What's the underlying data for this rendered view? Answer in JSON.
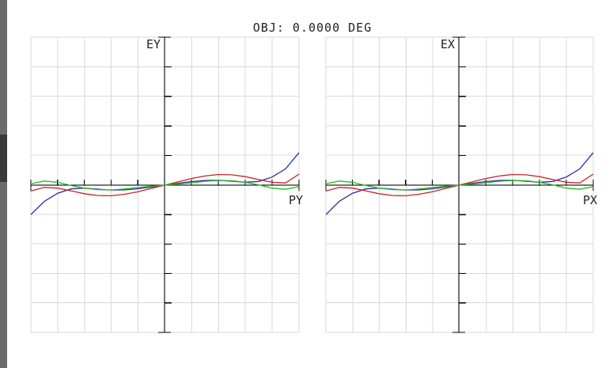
{
  "title": "OBJ: 0.0000 DEG",
  "colors": {
    "blue": "#2a2aa8",
    "red": "#cc2222",
    "green": "#22bb22"
  },
  "chart_data": [
    {
      "type": "line",
      "ylabel": "EY",
      "xlabel": "PY",
      "xlim": [
        -1,
        1
      ],
      "ylim": [
        -1,
        1
      ],
      "grid": true,
      "series": [
        {
          "color": "blue",
          "x": [
            -1,
            -0.9,
            -0.8,
            -0.7,
            -0.6,
            -0.5,
            -0.4,
            -0.3,
            -0.2,
            -0.1,
            0,
            0.1,
            0.2,
            0.3,
            0.4,
            0.5,
            0.6,
            0.7,
            0.8,
            0.9,
            1
          ],
          "y": [
            -0.2,
            -0.11,
            -0.055,
            -0.025,
            -0.02,
            -0.027,
            -0.033,
            -0.032,
            -0.024,
            -0.013,
            0,
            0.013,
            0.024,
            0.032,
            0.033,
            0.027,
            0.02,
            0.025,
            0.055,
            0.11,
            0.22
          ]
        },
        {
          "color": "red",
          "x": [
            -1,
            -0.9,
            -0.8,
            -0.7,
            -0.6,
            -0.5,
            -0.4,
            -0.3,
            -0.2,
            -0.1,
            0,
            0.1,
            0.2,
            0.3,
            0.4,
            0.5,
            0.6,
            0.7,
            0.8,
            0.9,
            1
          ],
          "y": [
            -0.04,
            -0.015,
            -0.02,
            -0.038,
            -0.058,
            -0.07,
            -0.072,
            -0.062,
            -0.045,
            -0.022,
            0,
            0.022,
            0.045,
            0.062,
            0.072,
            0.07,
            0.058,
            0.038,
            0.02,
            0.015,
            0.075
          ]
        },
        {
          "color": "green",
          "x": [
            -1,
            -0.9,
            -0.8,
            -0.7,
            -0.6,
            -0.5,
            -0.4,
            -0.3,
            -0.2,
            -0.1,
            0,
            0.1,
            0.2,
            0.3,
            0.4,
            0.5,
            0.6,
            0.7,
            0.8,
            0.9,
            1
          ],
          "y": [
            0.01,
            0.028,
            0.02,
            -0.002,
            -0.02,
            -0.03,
            -0.032,
            -0.026,
            -0.016,
            -0.007,
            0,
            0.007,
            0.016,
            0.026,
            0.032,
            0.03,
            0.02,
            0.002,
            -0.02,
            -0.028,
            -0.01
          ]
        }
      ]
    },
    {
      "type": "line",
      "ylabel": "EX",
      "xlabel": "PX",
      "xlim": [
        -1,
        1
      ],
      "ylim": [
        -1,
        1
      ],
      "grid": true,
      "series": [
        {
          "color": "blue",
          "x": [
            -1,
            -0.9,
            -0.8,
            -0.7,
            -0.6,
            -0.5,
            -0.4,
            -0.3,
            -0.2,
            -0.1,
            0,
            0.1,
            0.2,
            0.3,
            0.4,
            0.5,
            0.6,
            0.7,
            0.8,
            0.9,
            1
          ],
          "y": [
            -0.2,
            -0.11,
            -0.055,
            -0.025,
            -0.02,
            -0.027,
            -0.033,
            -0.032,
            -0.024,
            -0.013,
            0,
            0.013,
            0.024,
            0.032,
            0.033,
            0.027,
            0.02,
            0.025,
            0.055,
            0.11,
            0.22
          ]
        },
        {
          "color": "red",
          "x": [
            -1,
            -0.9,
            -0.8,
            -0.7,
            -0.6,
            -0.5,
            -0.4,
            -0.3,
            -0.2,
            -0.1,
            0,
            0.1,
            0.2,
            0.3,
            0.4,
            0.5,
            0.6,
            0.7,
            0.8,
            0.9,
            1
          ],
          "y": [
            -0.04,
            -0.015,
            -0.02,
            -0.038,
            -0.058,
            -0.07,
            -0.072,
            -0.062,
            -0.045,
            -0.022,
            0,
            0.022,
            0.045,
            0.062,
            0.072,
            0.07,
            0.058,
            0.038,
            0.02,
            0.015,
            0.075
          ]
        },
        {
          "color": "green",
          "x": [
            -1,
            -0.9,
            -0.8,
            -0.7,
            -0.6,
            -0.5,
            -0.4,
            -0.3,
            -0.2,
            -0.1,
            0,
            0.1,
            0.2,
            0.3,
            0.4,
            0.5,
            0.6,
            0.7,
            0.8,
            0.9,
            1
          ],
          "y": [
            0.01,
            0.028,
            0.02,
            -0.002,
            -0.02,
            -0.03,
            -0.032,
            -0.026,
            -0.016,
            -0.007,
            0,
            0.007,
            0.016,
            0.026,
            0.032,
            0.03,
            0.02,
            0.002,
            -0.02,
            -0.028,
            -0.01
          ]
        }
      ]
    }
  ]
}
